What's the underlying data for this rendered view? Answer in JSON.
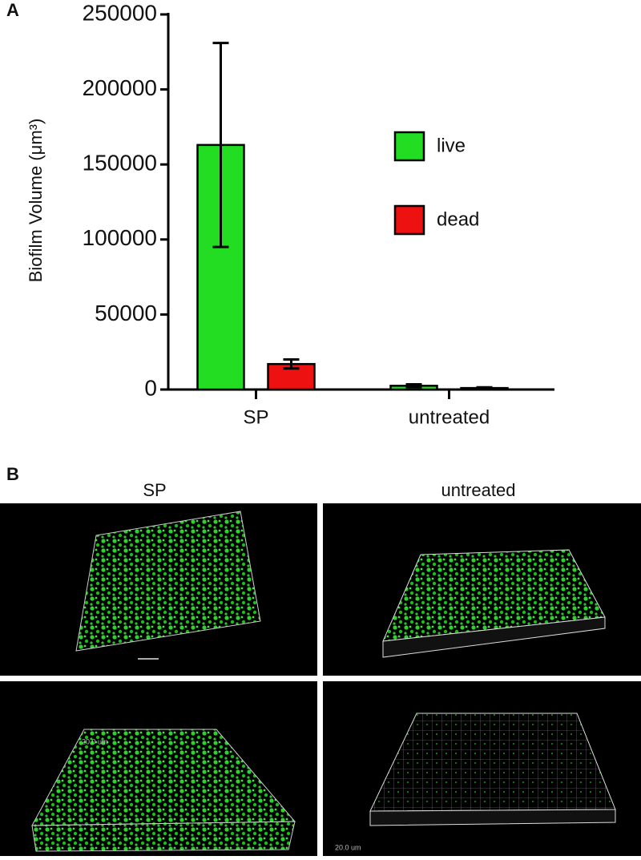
{
  "panel_a_label": "A",
  "chart_data": {
    "type": "bar",
    "ylabel": "Biofilm Volume (μm³)",
    "categories": [
      "SP",
      "untreated"
    ],
    "series": [
      {
        "name": "live",
        "color": "#22dd22",
        "values": [
          163000,
          2500
        ],
        "errors": [
          68000,
          1000
        ]
      },
      {
        "name": "dead",
        "color": "#ee1111",
        "values": [
          17000,
          1000
        ],
        "errors": [
          3000,
          500
        ]
      }
    ],
    "ylim": [
      0,
      250000
    ],
    "yticks": [
      0,
      50000,
      100000,
      150000,
      200000,
      250000
    ]
  },
  "panel_b": {
    "label": "B",
    "columns": [
      "SP",
      "untreated"
    ],
    "scale_labels": [
      "20.0 um",
      "20.0 um"
    ]
  }
}
